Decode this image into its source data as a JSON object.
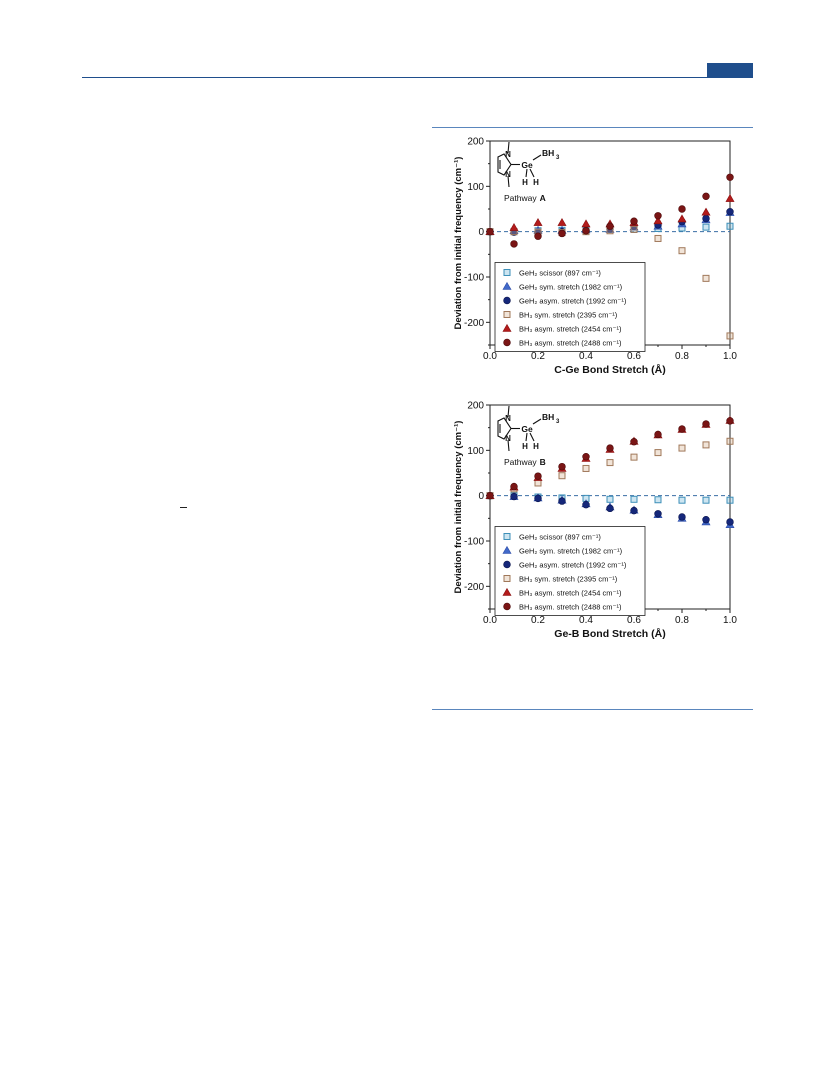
{
  "colors": {
    "header_blue": "#1f4e8c",
    "figure_rule": "#5a86bd",
    "zero_line": "#3a6ea5",
    "series": [
      "#6fb5d8",
      "#4169c9",
      "#15277a",
      "#d8b28e",
      "#b31b1b",
      "#7a1515"
    ],
    "series_stroke": [
      "#3d8fb8",
      "#2e4da8",
      "#0b1650",
      "#a0785a",
      "#8a1010",
      "#4e0b0b"
    ]
  },
  "chart_data": [
    {
      "type": "scatter",
      "xlabel": "C-Ge Bond Stretch (Å)",
      "ylabel": "Deviation from initial frequency (cm⁻¹)",
      "xlim": [
        0,
        1
      ],
      "ylim": [
        -250,
        200
      ],
      "x_ticks": [
        "0.0",
        "0.2",
        "0.4",
        "0.6",
        "0.8",
        "1.0"
      ],
      "y_ticks": [
        "200",
        "100",
        "0",
        "-100",
        "-200"
      ],
      "x": [
        0.0,
        0.1,
        0.2,
        0.3,
        0.4,
        0.5,
        0.6,
        0.7,
        0.8,
        0.9,
        1.0
      ],
      "legend_position": "lower-left",
      "inset": {
        "bh3": "BH",
        "bh3_sub": "3",
        "ge": "Ge",
        "n_top": "N",
        "n_bottom": "N",
        "h1": "H",
        "h2": "H",
        "pathway_label": "Pathway",
        "pathway_letter": "A"
      },
      "series": [
        {
          "name": "GeH₂ scissor (897 cm⁻¹)",
          "marker": "square-open",
          "values": [
            0,
            0,
            2,
            3,
            3,
            5,
            5,
            7,
            8,
            10,
            12
          ]
        },
        {
          "name": "GeH₂ sym. stretch (1982 cm⁻¹)",
          "marker": "triangle",
          "values": [
            0,
            2,
            3,
            3,
            4,
            5,
            10,
            12,
            17,
            26,
            42
          ]
        },
        {
          "name": "GeH₂ asym. stretch (1992 cm⁻¹)",
          "marker": "circle",
          "values": [
            0,
            -1,
            -4,
            0,
            2,
            6,
            12,
            15,
            22,
            29,
            44
          ]
        },
        {
          "name": "BH₃ sym. stretch (2395 cm⁻¹)",
          "marker": "square-open",
          "values": [
            0,
            0,
            -1,
            -2,
            0,
            2,
            5,
            -15,
            -42,
            -103,
            -230
          ]
        },
        {
          "name": "BH₃ asym. stretch (2454 cm⁻¹)",
          "marker": "triangle",
          "values": [
            0,
            9,
            20,
            20,
            17,
            17,
            20,
            24,
            28,
            43,
            73
          ]
        },
        {
          "name": "BH₃ asym. stretch (2488 cm⁻¹)",
          "marker": "circle",
          "values": [
            0,
            -27,
            -10,
            -4,
            2,
            12,
            23,
            35,
            50,
            78,
            120
          ]
        }
      ]
    },
    {
      "type": "scatter",
      "xlabel": "Ge-B Bond Stretch (Å)",
      "ylabel": "Deviation from initial frequency (cm⁻¹)",
      "xlim": [
        0,
        1
      ],
      "ylim": [
        -250,
        200
      ],
      "x_ticks": [
        "0.0",
        "0.2",
        "0.4",
        "0.6",
        "0.8",
        "1.0"
      ],
      "y_ticks": [
        "200",
        "100",
        "0",
        "-100",
        "-200"
      ],
      "x": [
        0.0,
        0.1,
        0.2,
        0.3,
        0.4,
        0.5,
        0.6,
        0.7,
        0.8,
        0.9,
        1.0
      ],
      "legend_position": "lower-left",
      "inset": {
        "bh3": "BH",
        "bh3_sub": "3",
        "ge": "Ge",
        "n_top": "N",
        "n_bottom": "N",
        "h1": "H",
        "h2": "H",
        "pathway_label": "Pathway",
        "pathway_letter": "B"
      },
      "series": [
        {
          "name": "GeH₂ scissor (897 cm⁻¹)",
          "marker": "square-open",
          "values": [
            0,
            0,
            -3,
            -5,
            -6,
            -8,
            -8,
            -9,
            -10,
            -10,
            -10
          ]
        },
        {
          "name": "GeH₂ sym. stretch (1982 cm⁻¹)",
          "marker": "triangle",
          "values": [
            0,
            -2,
            -5,
            -10,
            -18,
            -25,
            -32,
            -42,
            -50,
            -58,
            -64
          ]
        },
        {
          "name": "GeH₂ asym. stretch (1992 cm⁻¹)",
          "marker": "circle",
          "values": [
            0,
            -2,
            -6,
            -12,
            -20,
            -28,
            -33,
            -40,
            -47,
            -53,
            -58
          ]
        },
        {
          "name": "BH₃ sym. stretch (2395 cm⁻¹)",
          "marker": "square-open",
          "values": [
            0,
            15,
            28,
            44,
            60,
            73,
            85,
            95,
            105,
            112,
            120
          ]
        },
        {
          "name": "BH₃ asym. stretch (2454 cm⁻¹)",
          "marker": "triangle",
          "values": [
            0,
            19,
            40,
            60,
            82,
            102,
            120,
            134,
            146,
            157,
            166
          ]
        },
        {
          "name": "BH₃ asym. stretch (2488 cm⁻¹)",
          "marker": "circle",
          "values": [
            0,
            20,
            43,
            64,
            86,
            105,
            119,
            135,
            147,
            158,
            165
          ]
        }
      ]
    }
  ]
}
